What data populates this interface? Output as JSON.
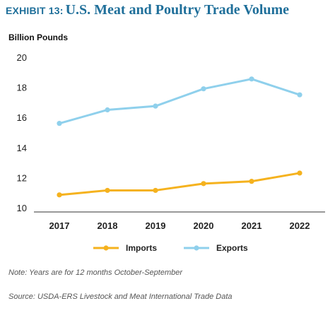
{
  "header": {
    "prefix": "EXHIBIT 13:",
    "title": "U.S. Meat and Poultry Trade Volume"
  },
  "chart_data": {
    "type": "line",
    "x": [
      "2017",
      "2018",
      "2019",
      "2020",
      "2021",
      "2022"
    ],
    "series": [
      {
        "name": "Imports",
        "values": [
          10.9,
          11.2,
          11.2,
          11.65,
          11.8,
          12.35
        ],
        "color": "#f5b21e"
      },
      {
        "name": "Exports",
        "values": [
          15.65,
          16.55,
          16.8,
          17.95,
          18.6,
          17.55
        ],
        "color": "#8fd0ec"
      }
    ],
    "ylabel": "Billion Pounds",
    "ylim": [
      10,
      20
    ],
    "yticks": [
      "10",
      "12",
      "14",
      "16",
      "18",
      "20"
    ],
    "grid": false,
    "legend_position": "bottom"
  },
  "notes": {
    "note": "Note: Years are for 12 months October-September",
    "source": "Source: USDA-ERS Livestock and Meat International Trade Data"
  }
}
